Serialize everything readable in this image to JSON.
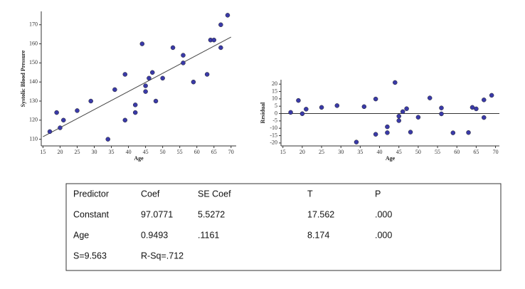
{
  "chart_data": [
    {
      "type": "scatter",
      "x_label": "Age",
      "y_label": "Systolic Blood Pressure",
      "x": [
        17,
        19,
        20,
        21,
        25,
        29,
        34,
        36,
        39,
        39,
        42,
        42,
        44,
        45,
        45,
        46,
        47,
        48,
        50,
        53,
        56,
        56,
        59,
        63,
        64,
        65,
        67,
        67,
        69
      ],
      "values": [
        114,
        124,
        116,
        120,
        125,
        130,
        110,
        136,
        144,
        120,
        128,
        124,
        160,
        138,
        135,
        142,
        145,
        130,
        142,
        158,
        150,
        154,
        140,
        144,
        162,
        162,
        158,
        170,
        175
      ],
      "color": "#3a3aa8",
      "fit_line": {
        "intercept": 97.0771,
        "slope": 0.9493
      },
      "xlim": [
        14.5,
        71.5
      ],
      "xticks": [
        15,
        20,
        25,
        30,
        35,
        40,
        45,
        50,
        55,
        60,
        65,
        70
      ],
      "ylim": [
        106.5,
        177
      ],
      "yticks": [
        110,
        120,
        130,
        140,
        150,
        160,
        170
      ]
    },
    {
      "type": "scatter",
      "x_label": "Age",
      "y_label": "Residual",
      "x": [
        17,
        19,
        20,
        21,
        25,
        29,
        34,
        36,
        39,
        39,
        42,
        42,
        44,
        45,
        45,
        46,
        47,
        48,
        50,
        53,
        56,
        56,
        59,
        63,
        64,
        65,
        67,
        67,
        69
      ],
      "values": [
        0.8,
        8.9,
        -0.1,
        3.0,
        4.2,
        5.4,
        -19.4,
        4.7,
        9.9,
        -14.1,
        -9.0,
        -13.0,
        21.1,
        -1.8,
        -4.8,
        1.3,
        3.3,
        -12.6,
        -2.5,
        10.6,
        -0.2,
        3.8,
        -13.1,
        -12.9,
        4.2,
        3.2,
        -2.7,
        9.3,
        12.4
      ],
      "color": "#3a3aa8",
      "reference_line": 0,
      "xlim": [
        14.5,
        71
      ],
      "xticks": [
        15,
        20,
        25,
        30,
        35,
        40,
        45,
        50,
        55,
        60,
        65,
        70
      ],
      "ylim": [
        -22,
        23
      ],
      "yticks": [
        -20,
        -15,
        -10,
        -5,
        0,
        5,
        10,
        15,
        20
      ]
    }
  ],
  "table": {
    "rows": [
      [
        "Predictor",
        "Coef",
        "SE Coef",
        "T",
        "P"
      ],
      [
        "Constant",
        "97.0771",
        "5.5272",
        "17.562",
        ".000"
      ],
      [
        "Age",
        "0.9493",
        ".1161",
        "8.174",
        ".000"
      ],
      [
        "S=9.563",
        "R-Sq=.712"
      ]
    ]
  }
}
